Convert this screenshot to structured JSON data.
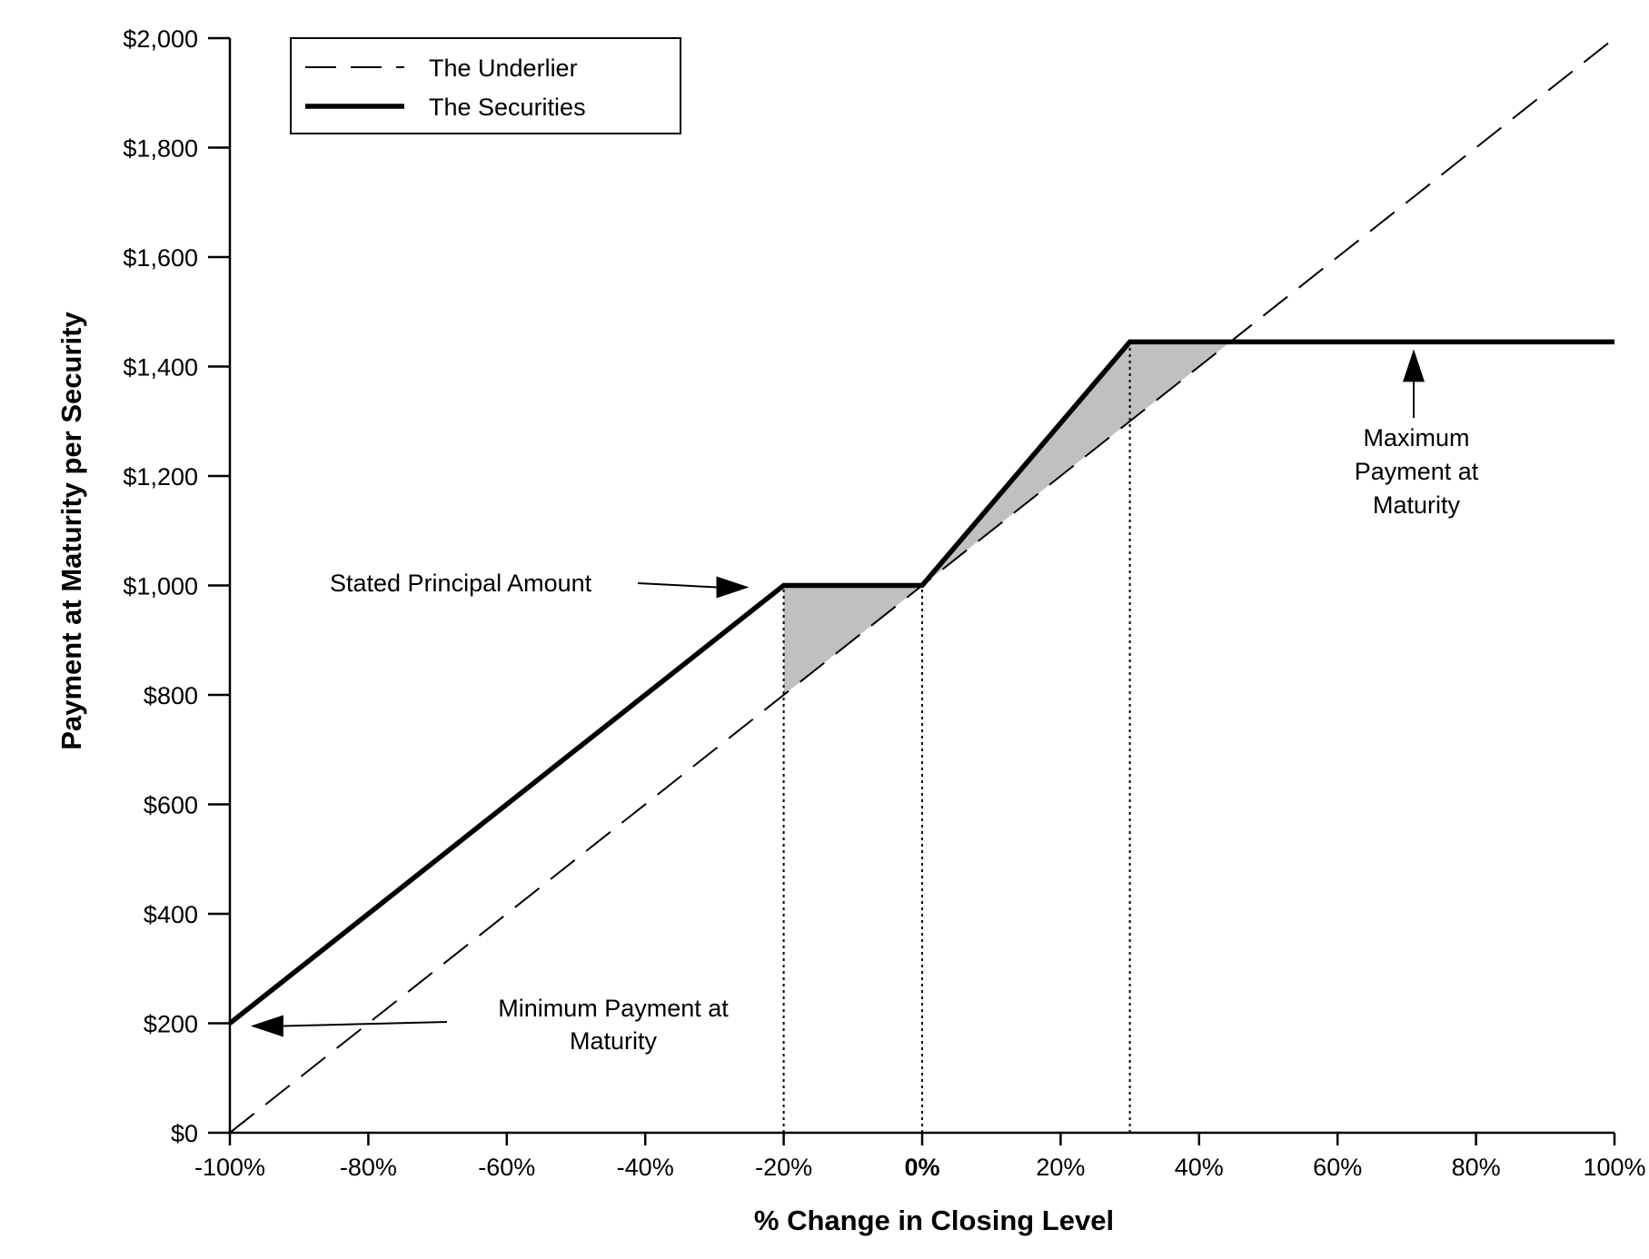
{
  "chart_data": {
    "type": "line",
    "title": "",
    "xlabel": "% Change in Closing Level",
    "ylabel": "Payment at Maturity per Security",
    "xlim": [
      -100,
      100
    ],
    "ylim": [
      0,
      2000
    ],
    "x_ticks": [
      -100,
      -80,
      -60,
      -40,
      -20,
      0,
      20,
      40,
      60,
      80,
      100
    ],
    "x_tick_labels": [
      "-100%",
      "-80%",
      "-60%",
      "-40%",
      "-20%",
      "0%",
      "20%",
      "40%",
      "60%",
      "80%",
      "100%"
    ],
    "y_ticks": [
      0,
      200,
      400,
      600,
      800,
      1000,
      1200,
      1400,
      1600,
      1800,
      2000
    ],
    "y_tick_labels": [
      "$0",
      "$200",
      "$400",
      "$600",
      "$800",
      "$1,000",
      "$1,200",
      "$1,400",
      "$1,600",
      "$1,800",
      "$2,000"
    ],
    "grid": false,
    "legend": {
      "position": "top-left",
      "entries": [
        {
          "label": "The Underlier",
          "style": "dashed"
        },
        {
          "label": "The Securities",
          "style": "solid-thick"
        }
      ]
    },
    "series": [
      {
        "name": "The Underlier",
        "style": "dashed",
        "color": "#000000",
        "x": [
          -100,
          100
        ],
        "y": [
          0,
          2000
        ]
      },
      {
        "name": "The Securities",
        "style": "solid-thick",
        "color": "#000000",
        "x": [
          -100,
          -20,
          0,
          30,
          100
        ],
        "y": [
          200,
          1000,
          1000,
          1445,
          1445
        ]
      }
    ],
    "shaded_regions": [
      {
        "color": "#c0c0c0",
        "points": [
          [
            -20,
            1000
          ],
          [
            0,
            1000
          ],
          [
            -20,
            800
          ]
        ]
      },
      {
        "color": "#c0c0c0",
        "points": [
          [
            0,
            1000
          ],
          [
            30,
            1445
          ],
          [
            44.5,
            1445
          ],
          [
            30,
            1300
          ]
        ]
      }
    ],
    "reference_lines": [
      {
        "x": -20,
        "y_top": 1000
      },
      {
        "x": 0,
        "y_top": 1000
      },
      {
        "x": 30,
        "y_top": 1445
      }
    ],
    "annotations": [
      {
        "id": "stated-principal",
        "lines": [
          "Stated Principal Amount"
        ],
        "arrow": "right",
        "target": [
          -25,
          1000
        ]
      },
      {
        "id": "max-payment",
        "lines": [
          "Maximum",
          "Payment at",
          "Maturity"
        ],
        "arrow": "up",
        "target": [
          71,
          1445
        ]
      },
      {
        "id": "min-payment",
        "lines": [
          "Minimum Payment at",
          "Maturity"
        ],
        "arrow": "left",
        "target": [
          -97,
          200
        ]
      }
    ]
  }
}
